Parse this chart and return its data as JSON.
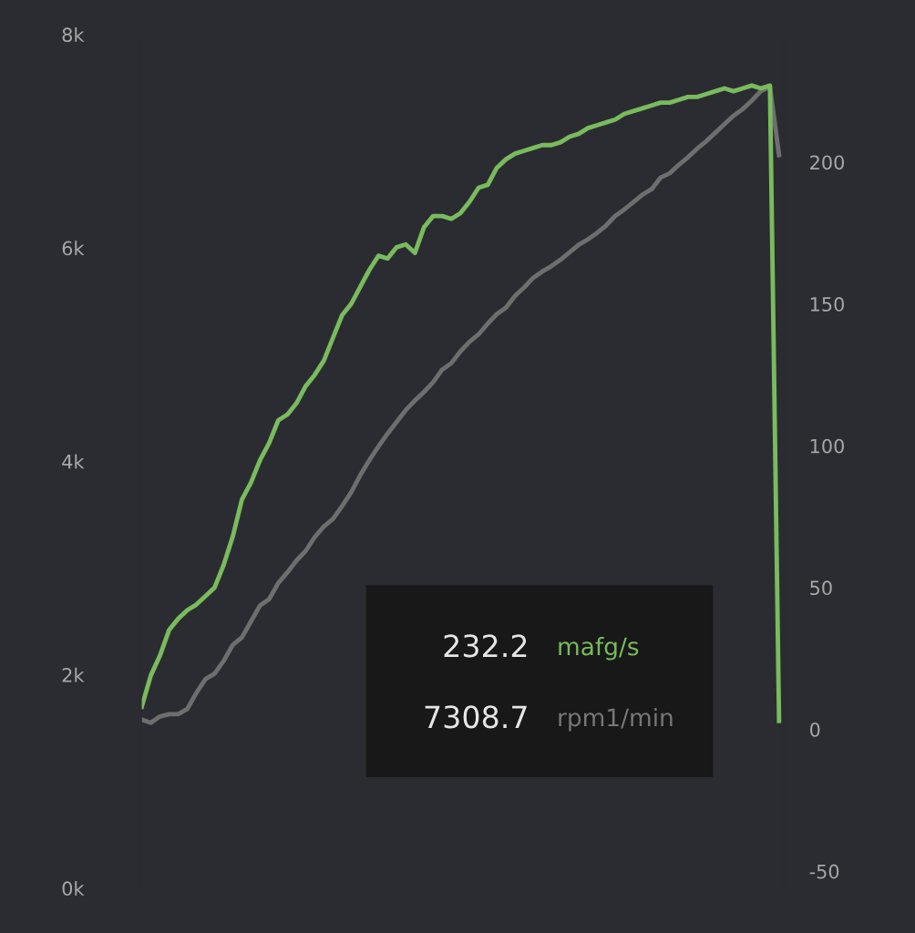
{
  "chart_data": {
    "type": "line",
    "categories": [
      null,
      null,
      null,
      null,
      null,
      null,
      null,
      null,
      null,
      null,
      null,
      null,
      null,
      null,
      null,
      null,
      null,
      null,
      null,
      null,
      null,
      null,
      null,
      null,
      null,
      null,
      null,
      null,
      null,
      null,
      null,
      null,
      null,
      null,
      null,
      null,
      null,
      null,
      null,
      null,
      null,
      null,
      null,
      null,
      null,
      null,
      null,
      null,
      null,
      null,
      null,
      null,
      null,
      null,
      null,
      null,
      null,
      null,
      null,
      null,
      null,
      null,
      null,
      null,
      null,
      null,
      null,
      null,
      null,
      null,
      null
    ],
    "series": [
      {
        "name": "rpm1/min",
        "color": "#6e6e6e",
        "axis": "y",
        "values": [
          1580,
          1550,
          1610,
          1630,
          1630,
          1680,
          1830,
          1960,
          2010,
          2130,
          2280,
          2350,
          2500,
          2650,
          2710,
          2860,
          2960,
          3070,
          3160,
          3290,
          3390,
          3460,
          3580,
          3710,
          3870,
          4010,
          4140,
          4260,
          4370,
          4480,
          4570,
          4650,
          4740,
          4860,
          4920,
          5030,
          5120,
          5190,
          5290,
          5380,
          5440,
          5550,
          5630,
          5720,
          5780,
          5830,
          5890,
          5960,
          6030,
          6080,
          6140,
          6210,
          6300,
          6360,
          6430,
          6500,
          6550,
          6660,
          6700,
          6780,
          6850,
          6930,
          7000,
          7080,
          7160,
          7240,
          7300,
          7380,
          7470,
          7510,
          6870
        ]
      },
      {
        "name": "mafg/s",
        "color": "#79bb5d",
        "axis": "y2",
        "values": [
          8,
          19,
          26,
          35,
          39,
          42,
          44,
          47,
          50,
          58,
          68,
          81,
          87,
          95,
          101,
          109,
          111,
          115,
          121,
          125,
          130,
          138,
          146,
          150,
          156,
          162,
          167,
          166,
          170,
          171,
          168,
          177,
          181,
          181,
          180,
          182,
          186,
          191,
          192,
          198,
          201,
          203,
          204,
          205,
          206,
          206,
          207,
          209,
          210,
          212,
          213,
          214,
          215,
          217,
          218,
          219,
          220,
          221,
          221,
          222,
          223,
          223,
          224,
          225,
          226,
          225,
          226,
          227,
          226,
          227,
          3
        ]
      }
    ],
    "ylim": [
      0,
      8000
    ],
    "yticks": [
      {
        "value": 0,
        "label": "0k"
      },
      {
        "value": 2000,
        "label": "2k"
      },
      {
        "value": 4000,
        "label": "4k"
      },
      {
        "value": 6000,
        "label": "6k"
      },
      {
        "value": 8000,
        "label": "8k"
      }
    ],
    "y2lim": [
      -56,
      245
    ],
    "y2ticks": [
      -50,
      0,
      50,
      100,
      150,
      200
    ],
    "annotations": [
      "232.2",
      "7308.7"
    ],
    "legend": "bottom",
    "grid": false,
    "marker": "none",
    "line_style": "solid"
  }
}
